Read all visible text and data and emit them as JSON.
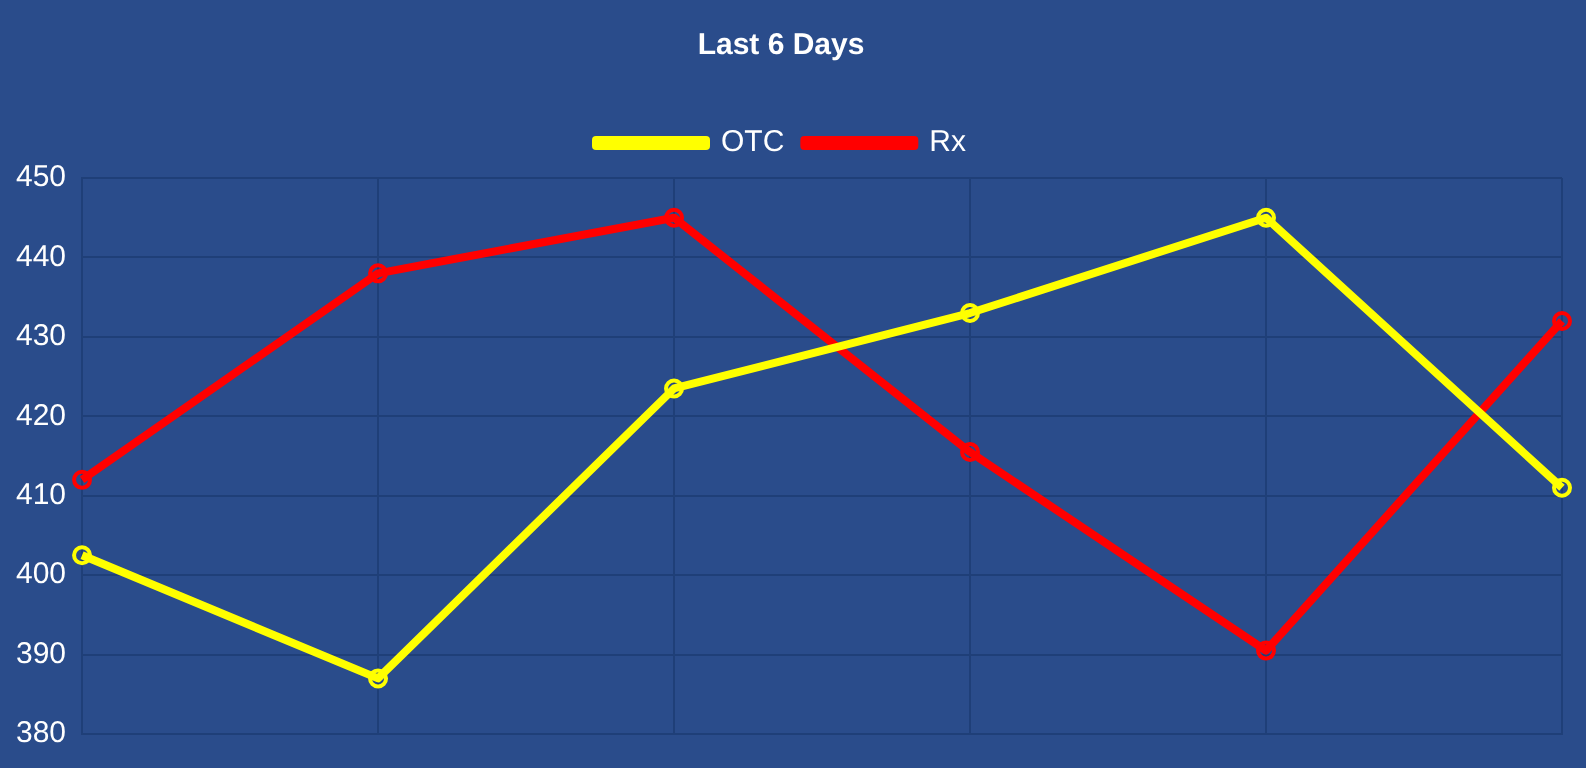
{
  "chart_data": {
    "type": "line",
    "title": "Last 6 Days",
    "categories": [
      null,
      null,
      null,
      null,
      null,
      null
    ],
    "series": [
      {
        "name": "OTC",
        "color": "#ffff00",
        "values": [
          402.5,
          387,
          423.5,
          433,
          445,
          411
        ]
      },
      {
        "name": "Rx",
        "color": "#ff0000",
        "values": [
          412,
          438,
          445,
          415.5,
          390.5,
          432
        ]
      }
    ],
    "ylim": [
      380,
      450
    ],
    "yticks": [
      380,
      390,
      400,
      410,
      420,
      430,
      440,
      450
    ],
    "grid": true,
    "legend": "top",
    "marker": "circle",
    "line_style": "solid",
    "tick_labels": "y"
  }
}
